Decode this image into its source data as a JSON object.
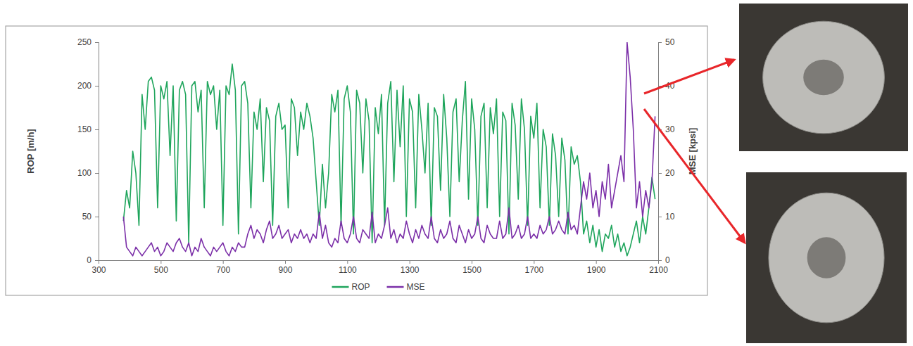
{
  "chart_data": {
    "type": "line",
    "y_label": "ROP [m/h]",
    "y2_label": "MSE [kpsi]",
    "xlim": [
      300,
      2100
    ],
    "xticks": [
      300,
      500,
      700,
      900,
      1100,
      1300,
      1500,
      1700,
      1900,
      2100
    ],
    "ylim": [
      0,
      250
    ],
    "yticks": [
      0,
      50,
      100,
      150,
      200,
      250
    ],
    "y2lim": [
      0,
      50
    ],
    "y2ticks": [
      0,
      10,
      20,
      30,
      40,
      50
    ],
    "grid": false,
    "legend": "bottom",
    "x": [
      380,
      390,
      400,
      410,
      420,
      430,
      440,
      450,
      460,
      470,
      480,
      490,
      500,
      510,
      520,
      530,
      540,
      550,
      560,
      570,
      580,
      590,
      600,
      610,
      620,
      630,
      640,
      650,
      660,
      670,
      680,
      690,
      700,
      710,
      720,
      730,
      740,
      750,
      760,
      770,
      780,
      790,
      800,
      810,
      820,
      830,
      840,
      850,
      860,
      870,
      880,
      890,
      900,
      910,
      920,
      930,
      940,
      950,
      960,
      970,
      980,
      990,
      1000,
      1010,
      1020,
      1030,
      1040,
      1050,
      1060,
      1070,
      1080,
      1090,
      1100,
      1110,
      1120,
      1130,
      1140,
      1150,
      1160,
      1170,
      1180,
      1190,
      1200,
      1210,
      1220,
      1230,
      1240,
      1250,
      1260,
      1270,
      1280,
      1290,
      1300,
      1310,
      1320,
      1330,
      1340,
      1350,
      1360,
      1370,
      1380,
      1390,
      1400,
      1410,
      1420,
      1430,
      1440,
      1450,
      1460,
      1470,
      1480,
      1490,
      1500,
      1510,
      1520,
      1530,
      1540,
      1550,
      1560,
      1570,
      1580,
      1590,
      1600,
      1610,
      1620,
      1630,
      1640,
      1650,
      1660,
      1670,
      1680,
      1690,
      1700,
      1710,
      1720,
      1730,
      1740,
      1750,
      1760,
      1770,
      1780,
      1790,
      1800,
      1810,
      1820,
      1830,
      1840,
      1850,
      1860,
      1870,
      1880,
      1890,
      1900,
      1910,
      1920,
      1930,
      1940,
      1950,
      1960,
      1970,
      1980,
      1990,
      2000,
      2010,
      2020,
      2030,
      2040,
      2050,
      2060,
      2070,
      2080,
      2090
    ],
    "series": [
      {
        "name": "ROP",
        "color": "#1fa55c",
        "values": [
          45,
          80,
          60,
          125,
          100,
          40,
          190,
          150,
          205,
          210,
          195,
          60,
          200,
          185,
          205,
          120,
          200,
          45,
          195,
          205,
          190,
          20,
          200,
          205,
          170,
          195,
          60,
          205,
          190,
          200,
          150,
          195,
          40,
          200,
          190,
          225,
          195,
          30,
          200,
          205,
          180,
          60,
          170,
          150,
          185,
          90,
          175,
          160,
          40,
          165,
          180,
          150,
          155,
          60,
          185,
          175,
          120,
          170,
          150,
          180,
          165,
          140,
          90,
          40,
          110,
          60,
          100,
          190,
          170,
          195,
          40,
          185,
          200,
          170,
          30,
          195,
          180,
          100,
          185,
          160,
          20,
          175,
          145,
          190,
          40,
          180,
          205,
          90,
          195,
          130,
          200,
          50,
          185,
          170,
          60,
          190,
          150,
          100,
          180,
          40,
          175,
          165,
          80,
          190,
          140,
          50,
          170,
          185,
          90,
          160,
          205,
          70,
          185,
          150,
          40,
          165,
          180,
          60,
          175,
          145,
          185,
          50,
          170,
          160,
          30,
          180,
          155,
          70,
          185,
          150,
          40,
          165,
          140,
          180,
          60,
          150,
          130,
          40,
          145,
          120,
          50,
          140,
          115,
          30,
          130,
          110,
          120,
          90,
          30,
          45,
          20,
          40,
          15,
          35,
          10,
          30,
          25,
          40,
          15,
          30,
          10,
          20,
          5,
          15,
          30,
          45,
          20,
          50,
          30,
          60,
          95,
          70
        ]
      },
      {
        "name": "MSE",
        "color": "#7b2fa8",
        "axis": "y2",
        "values": [
          10,
          3,
          2,
          1,
          3,
          2,
          1,
          2,
          3,
          4,
          2,
          3,
          1,
          2,
          4,
          3,
          2,
          4,
          5,
          3,
          2,
          4,
          1,
          3,
          2,
          5,
          3,
          2,
          1,
          3,
          2,
          3,
          4,
          2,
          1,
          3,
          2,
          4,
          3,
          3,
          6,
          8,
          5,
          7,
          6,
          4,
          7,
          9,
          5,
          6,
          8,
          5,
          6,
          7,
          4,
          6,
          5,
          7,
          5,
          6,
          4,
          6,
          5,
          11,
          5,
          8,
          4,
          3,
          5,
          4,
          9,
          5,
          4,
          6,
          10,
          5,
          4,
          7,
          6,
          5,
          11,
          4,
          6,
          5,
          8,
          12,
          5,
          7,
          4,
          6,
          5,
          9,
          6,
          4,
          7,
          5,
          8,
          6,
          5,
          10,
          5,
          4,
          7,
          5,
          6,
          9,
          5,
          4,
          8,
          6,
          4,
          7,
          5,
          6,
          10,
          5,
          4,
          8,
          6,
          5,
          5,
          9,
          5,
          6,
          12,
          5,
          6,
          8,
          5,
          6,
          10,
          5,
          6,
          5,
          8,
          6,
          7,
          10,
          6,
          7,
          9,
          7,
          6,
          11,
          7,
          8,
          6,
          12,
          18,
          14,
          20,
          12,
          16,
          10,
          18,
          14,
          22,
          12,
          16,
          20,
          24,
          18,
          50,
          42,
          30,
          12,
          18,
          10,
          16,
          12,
          18,
          33
        ]
      }
    ]
  }
}
